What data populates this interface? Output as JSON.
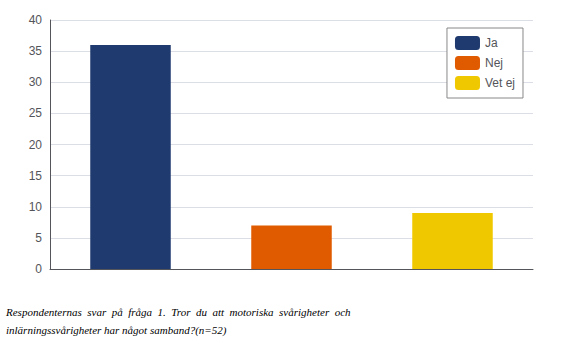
{
  "chart_data": {
    "type": "bar",
    "categories": [
      "Ja",
      "Nej",
      "Vet ej"
    ],
    "values": [
      36,
      7,
      9
    ],
    "colors": [
      "#1f3a6e",
      "#e05a00",
      "#f0c800"
    ],
    "ylim": [
      0,
      40
    ],
    "yticks": [
      0,
      5,
      10,
      15,
      20,
      25,
      30,
      35,
      40
    ],
    "grid": true,
    "legend": "upper right",
    "tick_labels": "y",
    "annotations": [
      "Respondenternas  svar  på  fråga  1.  Tror  du  att  motoriska  svårigheter  och",
      "inlärningssvårigheter har något samband?(n=52)"
    ]
  }
}
